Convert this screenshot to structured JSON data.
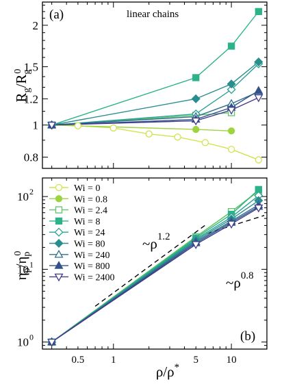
{
  "chart_data": [
    {
      "type": "line",
      "panel_label": "(a)",
      "annotation": "linear chains",
      "ylabel_main": "R",
      "ylabel_sub": "g",
      "ylabel_den_main": "R",
      "ylabel_den_sub": "g",
      "ylabel_den_sup": "0",
      "xscale": "log",
      "yscale": "log",
      "xlim": [
        0.25,
        20
      ],
      "ylim": [
        0.74,
        2.35
      ],
      "yticks": [
        0.8,
        1,
        1.2,
        1.5,
        2
      ],
      "ytick_labels": [
        "0.8",
        "1",
        "1.2",
        "1.5",
        "2"
      ],
      "series": [
        {
          "name": "Wi = 0",
          "color": "#d2e34c",
          "marker": "circle",
          "filled": false,
          "x": [
            0.3,
            0.5,
            1,
            2,
            3.5,
            6,
            10,
            17
          ],
          "y": [
            1.0,
            0.995,
            0.98,
            0.94,
            0.92,
            0.885,
            0.845,
            0.785
          ]
        },
        {
          "name": "Wi = 0.8",
          "color": "#9ed43f",
          "marker": "circle",
          "filled": true,
          "x": [
            0.3,
            5,
            10
          ],
          "y": [
            1.0,
            0.97,
            0.96
          ]
        },
        {
          "name": "Wi = 2.4",
          "color": "#5fc46b",
          "marker": "square",
          "filled": false,
          "x": [
            0.3,
            5,
            10
          ],
          "y": [
            1.0,
            1.07,
            1.09
          ]
        },
        {
          "name": "Wi = 8",
          "color": "#2db38a",
          "marker": "square",
          "filled": true,
          "x": [
            0.3,
            5,
            10,
            17
          ],
          "y": [
            1.0,
            1.39,
            1.73,
            2.2
          ]
        },
        {
          "name": "Wi = 24",
          "color": "#27a192",
          "marker": "diamond",
          "filled": false,
          "x": [
            0.3,
            5,
            10,
            17
          ],
          "y": [
            1.0,
            1.08,
            1.28,
            1.53
          ]
        },
        {
          "name": "Wi = 80",
          "color": "#2a8d8e",
          "marker": "diamond",
          "filled": true,
          "x": [
            0.3,
            5,
            10,
            17
          ],
          "y": [
            1.0,
            1.2,
            1.33,
            1.55
          ]
        },
        {
          "name": "Wi = 240",
          "color": "#2e6f8c",
          "marker": "triangle-up",
          "filled": false,
          "x": [
            0.3,
            5,
            10,
            17
          ],
          "y": [
            1.0,
            1.06,
            1.16,
            1.26
          ]
        },
        {
          "name": "Wi = 800",
          "color": "#32528a",
          "marker": "triangle-up",
          "filled": true,
          "x": [
            0.3,
            5,
            10,
            17
          ],
          "y": [
            1.0,
            1.04,
            1.13,
            1.27
          ]
        },
        {
          "name": "Wi = 2400",
          "color": "#423b8a",
          "marker": "triangle-down",
          "filled": false,
          "x": [
            0.3,
            5,
            10,
            17
          ],
          "y": [
            1.0,
            1.03,
            1.11,
            1.21
          ]
        }
      ]
    },
    {
      "type": "line",
      "panel_label": "(b)",
      "ylabel_main": "η",
      "ylabel_sub": "p",
      "ylabel_den_main": "η",
      "ylabel_den_sub": "p",
      "ylabel_den_sup": "0",
      "xlabel_main": "ρ/ρ",
      "xlabel_sup": "*",
      "xscale": "log",
      "yscale": "log",
      "xlim": [
        0.25,
        20
      ],
      "ylim": [
        0.8,
        180
      ],
      "xticks": [
        0.5,
        1,
        5,
        10
      ],
      "xtick_labels": [
        "0.5",
        "1",
        "5",
        "10"
      ],
      "yticks": [
        1,
        10,
        100
      ],
      "ytick_base": "10",
      "ytick_exps": [
        "0",
        "1",
        "2"
      ],
      "scaling_lines": [
        {
          "label_main": "~ρ",
          "label_sup": "1.2",
          "x": [
            0.7,
            6.2
          ],
          "y": [
            3.1,
            42
          ]
        },
        {
          "label_main": "~ρ",
          "label_sup": "0.8",
          "x": [
            6.2,
            19
          ],
          "y": [
            31,
            55
          ]
        }
      ],
      "series": [
        {
          "name": "Wi = 0",
          "color": "#d2e34c",
          "marker": "circle",
          "filled": false,
          "x": [
            0.3,
            5,
            10,
            17
          ],
          "y": [
            1.0,
            28,
            62,
            118
          ]
        },
        {
          "name": "Wi = 0.8",
          "color": "#9ed43f",
          "marker": "circle",
          "filled": true,
          "x": [
            0.3,
            5,
            10,
            17
          ],
          "y": [
            1.0,
            28,
            62,
            118
          ]
        },
        {
          "name": "Wi = 2.4",
          "color": "#5fc46b",
          "marker": "square",
          "filled": false,
          "x": [
            0.3,
            5,
            10,
            17
          ],
          "y": [
            1.0,
            28,
            62,
            120
          ]
        },
        {
          "name": "Wi = 8",
          "color": "#2db38a",
          "marker": "square",
          "filled": true,
          "x": [
            0.3,
            5,
            10,
            17
          ],
          "y": [
            1.0,
            27,
            57,
            125
          ]
        },
        {
          "name": "Wi = 24",
          "color": "#27a192",
          "marker": "diamond",
          "filled": false,
          "x": [
            0.3,
            5,
            10,
            17
          ],
          "y": [
            1.0,
            26,
            52,
            103
          ]
        },
        {
          "name": "Wi = 80",
          "color": "#2a8d8e",
          "marker": "diamond",
          "filled": true,
          "x": [
            0.3,
            5,
            10,
            17
          ],
          "y": [
            1.0,
            25,
            49,
            88
          ]
        },
        {
          "name": "Wi = 240",
          "color": "#2e6f8c",
          "marker": "triangle-up",
          "filled": false,
          "x": [
            0.3,
            5,
            10,
            17
          ],
          "y": [
            1.0,
            24,
            46,
            77
          ]
        },
        {
          "name": "Wi = 800",
          "color": "#32528a",
          "marker": "triangle-up",
          "filled": true,
          "x": [
            0.3,
            5,
            10,
            17
          ],
          "y": [
            1.0,
            23,
            44,
            73
          ]
        },
        {
          "name": "Wi = 2400",
          "color": "#423b8a",
          "marker": "triangle-down",
          "filled": false,
          "x": [
            0.3,
            5,
            10,
            17
          ],
          "y": [
            1.0,
            22,
            42,
            70
          ]
        }
      ]
    }
  ]
}
